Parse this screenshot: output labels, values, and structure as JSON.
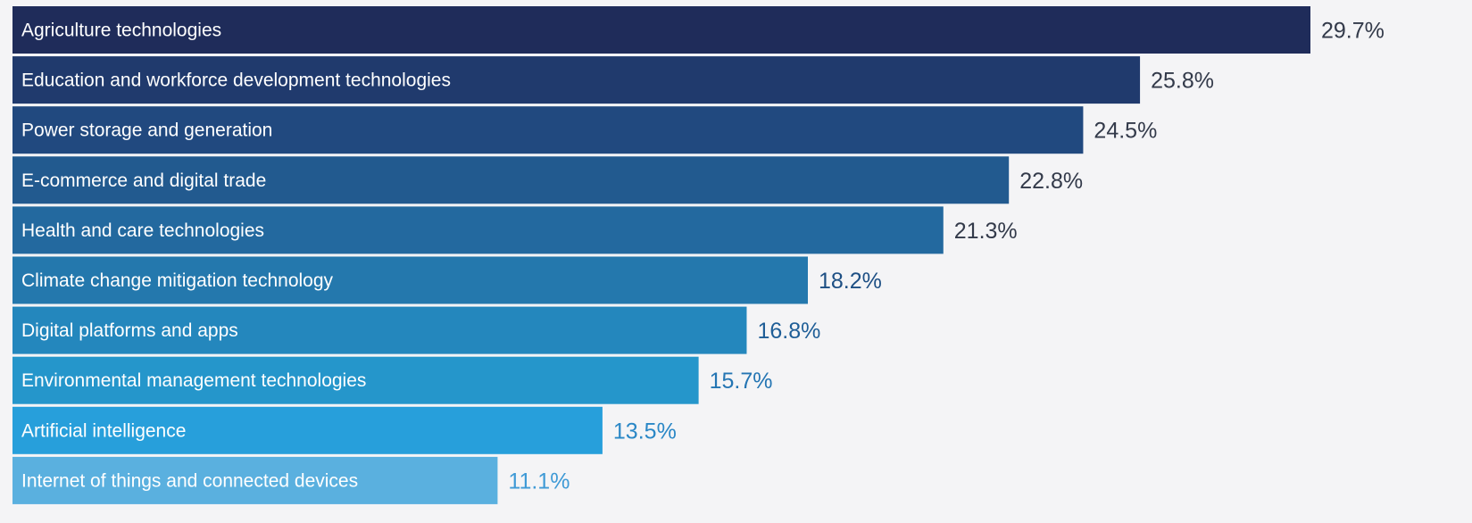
{
  "chart_data": {
    "type": "bar",
    "orientation": "horizontal",
    "categories": [
      "Agriculture technologies",
      "Education and workforce development technologies",
      "Power storage and generation",
      "E-commerce and digital trade",
      "Health and care technologies",
      "Climate change mitigation technology",
      "Digital platforms and apps",
      "Environmental management technologies",
      "Artificial intelligence",
      "Internet of things and connected devices"
    ],
    "values": [
      29.7,
      25.8,
      24.5,
      22.8,
      21.3,
      18.2,
      16.8,
      15.7,
      13.5,
      11.1
    ],
    "value_labels": [
      "29.7%",
      "25.8%",
      "24.5%",
      "22.8%",
      "21.3%",
      "18.2%",
      "16.8%",
      "15.7%",
      "13.5%",
      "11.1%"
    ],
    "bar_colors": [
      "#1f2c5a",
      "#203a6d",
      "#21497f",
      "#225a8f",
      "#23699f",
      "#2478ad",
      "#2487bd",
      "#2596cb",
      "#279fdb",
      "#5ab0df"
    ],
    "value_label_colors": [
      "#333a4a",
      "#333a4a",
      "#333a4a",
      "#333a4a",
      "#333a4a",
      "#1d4f84",
      "#1f5e97",
      "#2475b3",
      "#2a87c6",
      "#3f9ad6"
    ],
    "bar_label_color": "#ffffff",
    "background": "#f4f4f6",
    "title": "",
    "xlabel": "",
    "ylabel": "",
    "xlim": [
      0,
      29.7
    ],
    "grid": false,
    "legend": "none"
  }
}
